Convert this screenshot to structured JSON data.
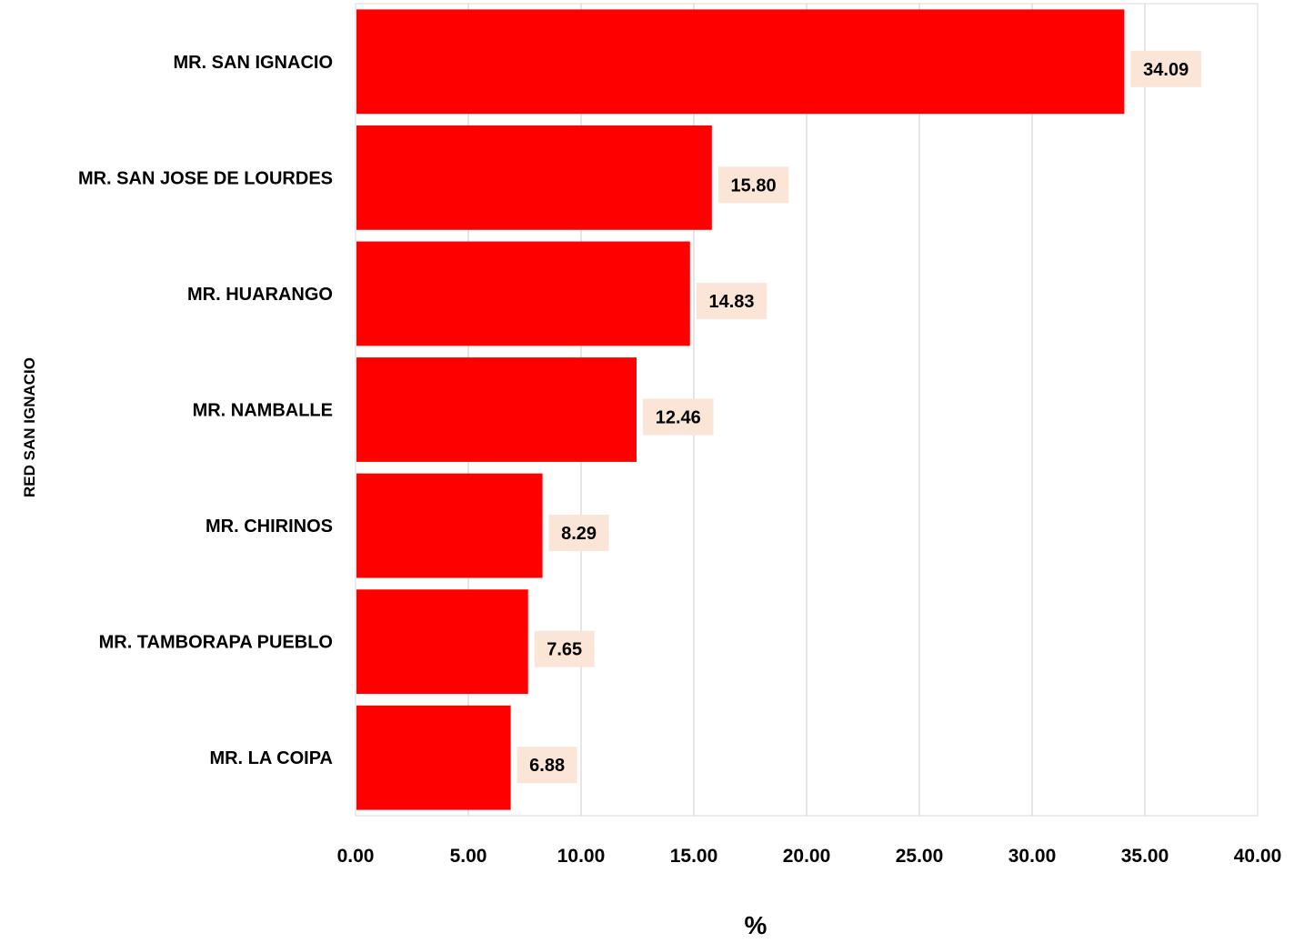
{
  "chart_data": {
    "type": "bar",
    "orientation": "horizontal",
    "categories": [
      "MR. SAN IGNACIO",
      "MR. SAN JOSE DE LOURDES",
      "MR. HUARANGO",
      "MR. NAMBALLE",
      "MR. CHIRINOS",
      "MR. TAMBORAPA PUEBLO",
      "MR. LA COIPA"
    ],
    "values": [
      34.09,
      15.8,
      14.83,
      12.46,
      8.29,
      7.65,
      6.88
    ],
    "data_labels": [
      "34.09",
      "15.80",
      "14.83",
      "12.46",
      "8.29",
      "7.65",
      "6.88"
    ],
    "xlabel": "%",
    "ylabel": "RED SAN IGNACIO",
    "xlim": [
      0,
      40
    ],
    "x_ticks": [
      0,
      5,
      10,
      15,
      20,
      25,
      30,
      35,
      40
    ],
    "x_tick_labels": [
      "0.00",
      "5.00",
      "10.00",
      "15.00",
      "20.00",
      "25.00",
      "30.00",
      "35.00",
      "40.00"
    ],
    "grid": true,
    "legend": "none",
    "colors": {
      "bar": "#ff0000",
      "label_box": "#fbe5d6",
      "grid": "#d9d9d9",
      "frame": "#d9d9d9"
    }
  }
}
